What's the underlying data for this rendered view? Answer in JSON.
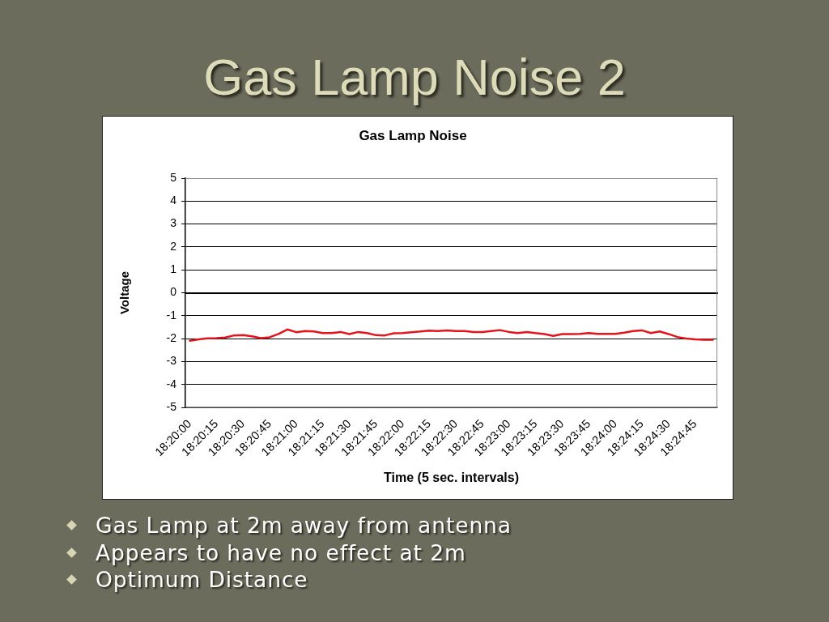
{
  "chart_data": {
    "type": "line",
    "title": "Gas Lamp Noise 2",
    "subtitle": "Gas Lamp Noise",
    "xlabel": "Time (5 sec. intervals)",
    "ylabel": "Voltage",
    "categories": [
      "18:20:00",
      null,
      null,
      "18:20:15",
      null,
      null,
      "18:20:30",
      null,
      null,
      "18:20:45",
      null,
      null,
      "18:21:00",
      null,
      null,
      "18:21:15",
      null,
      null,
      "18:21:30",
      null,
      null,
      "18:21:45",
      null,
      null,
      "18:22:00",
      null,
      null,
      "18:22:15",
      null,
      null,
      "18:22:30",
      null,
      null,
      "18:22:45",
      null,
      null,
      "18:23:00",
      null,
      null,
      "18:23:15",
      null,
      null,
      "18:23:30",
      null,
      null,
      "18:23:45",
      null,
      null,
      "18:24:00",
      null,
      null,
      "18:24:15",
      null,
      null,
      "18:24:30",
      null,
      null,
      "18:24:45",
      null,
      null
    ],
    "values": [
      -2.09,
      -2.03,
      -1.99,
      -1.98,
      -1.95,
      -1.86,
      -1.85,
      -1.9,
      -1.98,
      -1.94,
      -1.8,
      -1.6,
      -1.72,
      -1.67,
      -1.69,
      -1.76,
      -1.76,
      -1.71,
      -1.8,
      -1.71,
      -1.76,
      -1.85,
      -1.86,
      -1.77,
      -1.76,
      -1.72,
      -1.69,
      -1.65,
      -1.67,
      -1.64,
      -1.67,
      -1.67,
      -1.71,
      -1.71,
      -1.67,
      -1.63,
      -1.71,
      -1.76,
      -1.71,
      -1.76,
      -1.8,
      -1.88,
      -1.8,
      -1.8,
      -1.79,
      -1.76,
      -1.79,
      -1.79,
      -1.79,
      -1.74,
      -1.67,
      -1.64,
      -1.76,
      -1.69,
      -1.8,
      -1.93,
      -2.0,
      -2.03,
      -2.05,
      -2.05
    ],
    "color": "#e3141b",
    "ylim": [
      -5,
      5
    ],
    "yticks": [
      -5,
      -4,
      -3,
      -2,
      -1,
      0,
      1,
      2,
      3,
      4,
      5
    ],
    "grid": "y",
    "legend": false,
    "marker": "none",
    "line_style": "solid",
    "annotations": [
      "Gas Lamp at 2m away from antenna",
      "Appears to have no effect at 2m",
      "Optimum Distance"
    ]
  }
}
